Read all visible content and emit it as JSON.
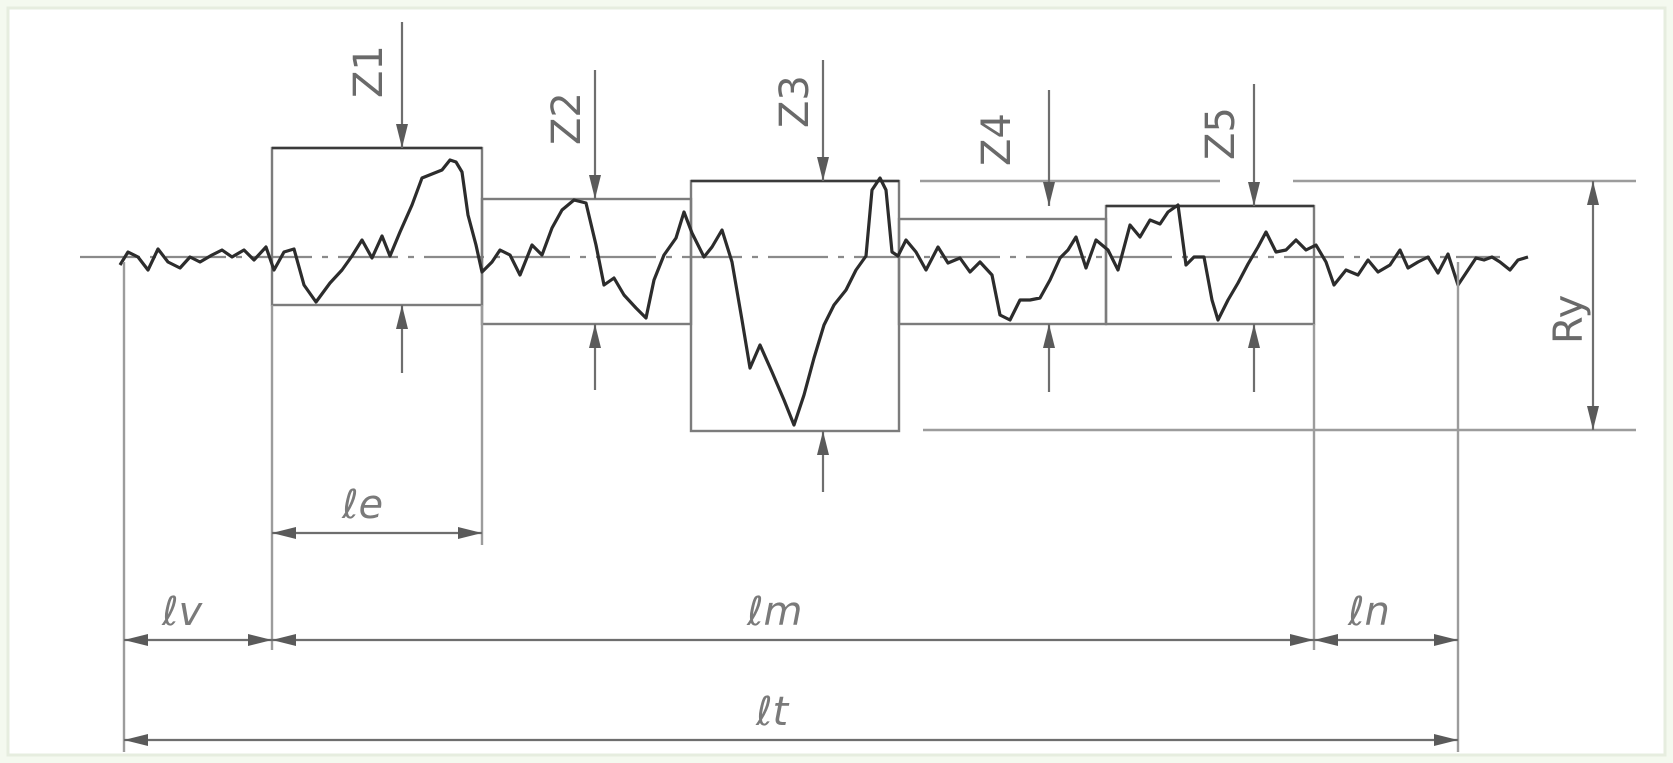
{
  "labels": {
    "z1": "Z1",
    "z2": "Z2",
    "z3": "Z3",
    "z4": "Z4",
    "z5": "Z5",
    "ry": "Ry",
    "le": "ℓe",
    "lv": "ℓv",
    "lm": "ℓm",
    "ln": "ℓn",
    "lt": "ℓt"
  },
  "colors": {
    "background": "#f4f9ef",
    "profile": "#2c2c2c",
    "lines": "#8a8a8a"
  }
}
